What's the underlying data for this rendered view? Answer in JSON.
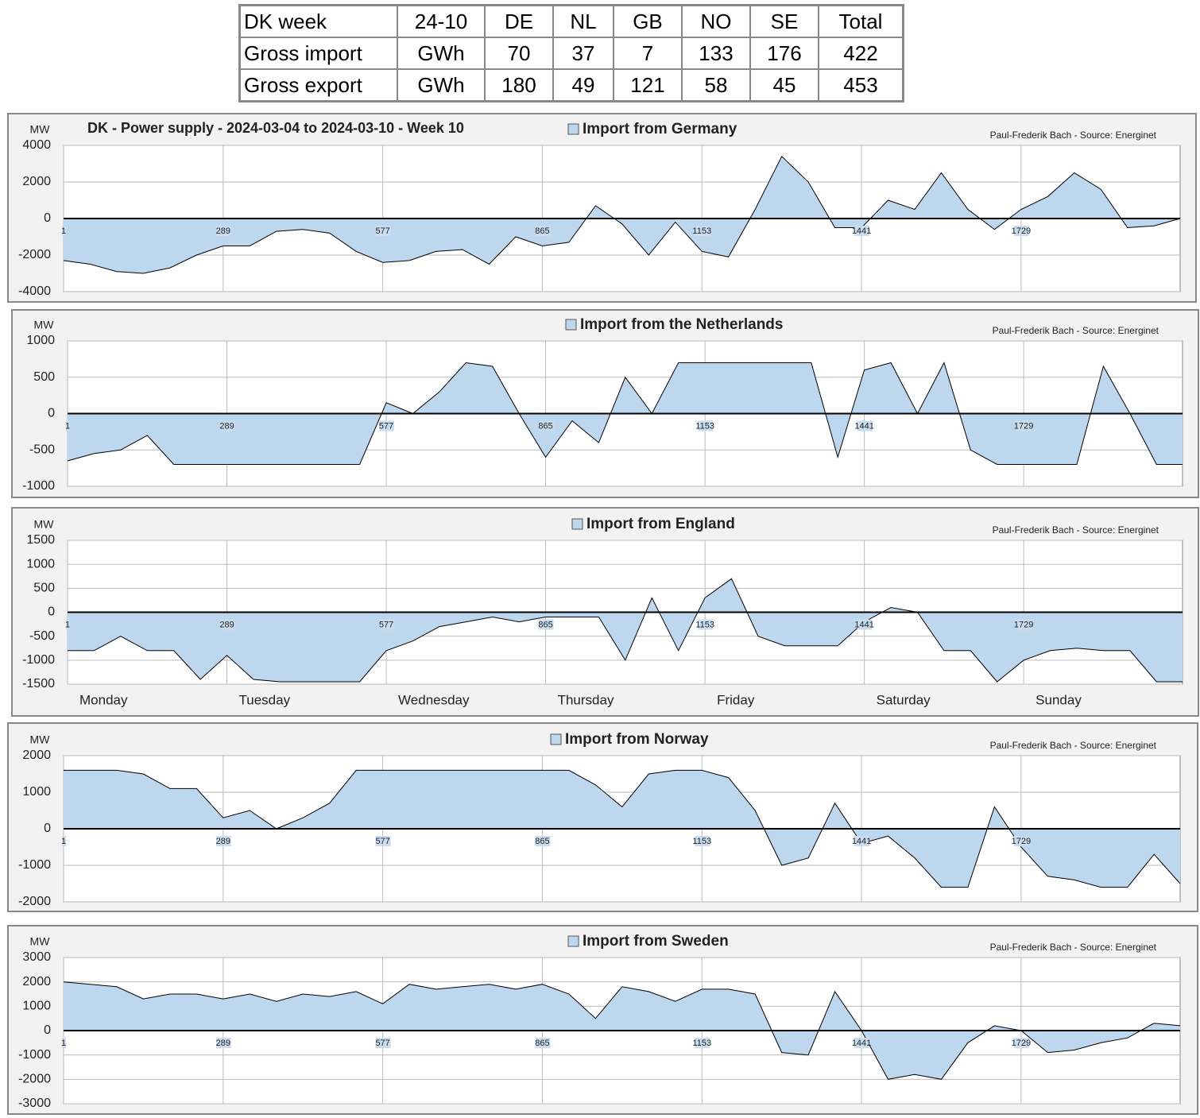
{
  "table": {
    "header": [
      "DK week",
      "24-10",
      "DE",
      "NL",
      "GB",
      "NO",
      "SE",
      "Total"
    ],
    "rows": [
      [
        "Gross import",
        "GWh",
        70,
        37,
        7,
        133,
        176,
        422
      ],
      [
        "Gross export",
        "GWh",
        180,
        49,
        121,
        58,
        45,
        453
      ]
    ]
  },
  "chart_data": [
    {
      "type": "area",
      "title": "DK - Power supply  - 2024-03-04 to 2024-03-10 - Week 10",
      "ylabel": "MW",
      "source": "Paul-Frederik Bach - Source: Energinet",
      "xlim": [
        1,
        2016
      ],
      "xticks": [
        1,
        289,
        577,
        865,
        1153,
        1441,
        1729
      ],
      "ylim": [
        -4000,
        4000
      ],
      "yticks": [
        -4000,
        -2000,
        0,
        2000,
        4000
      ],
      "grid": true,
      "x": [
        1,
        49,
        97,
        145,
        193,
        241,
        289,
        337,
        385,
        433,
        481,
        529,
        577,
        625,
        673,
        721,
        769,
        817,
        865,
        913,
        961,
        1009,
        1057,
        1105,
        1153,
        1201,
        1249,
        1297,
        1345,
        1393,
        1441,
        1489,
        1537,
        1585,
        1633,
        1681,
        1729,
        1777,
        1825,
        1873,
        1921,
        1969,
        2016
      ],
      "series": [
        {
          "name": "Import from Germany",
          "color": "#bdd7ee",
          "values": [
            -2300,
            -2500,
            -2900,
            -3000,
            -2700,
            -2000,
            -1500,
            -1500,
            -700,
            -600,
            -800,
            -1800,
            -2400,
            -2300,
            -1800,
            -1700,
            -2500,
            -1000,
            -1500,
            -1300,
            700,
            -300,
            -2000,
            -200,
            -1800,
            -2100,
            500,
            3400,
            2000,
            -500,
            -500,
            1000,
            500,
            2500,
            500,
            -600,
            500,
            1200,
            2500,
            1600,
            -500,
            -400,
            0
          ]
        }
      ]
    },
    {
      "type": "area",
      "ylabel": "MW",
      "source": "Paul-Frederik Bach - Source: Energinet",
      "xlim": [
        1,
        2016
      ],
      "xticks": [
        1,
        289,
        577,
        865,
        1153,
        1441,
        1729
      ],
      "ylim": [
        -1000,
        1000
      ],
      "yticks": [
        -1000,
        -500,
        0,
        500,
        1000
      ],
      "grid": true,
      "x": [
        1,
        49,
        97,
        145,
        193,
        241,
        289,
        337,
        385,
        433,
        481,
        529,
        577,
        625,
        673,
        721,
        769,
        817,
        865,
        913,
        961,
        1009,
        1057,
        1105,
        1153,
        1201,
        1249,
        1297,
        1345,
        1393,
        1441,
        1489,
        1537,
        1585,
        1633,
        1681,
        1729,
        1777,
        1825,
        1873,
        1921,
        1969,
        2016
      ],
      "series": [
        {
          "name": "Import from the Netherlands",
          "color": "#bdd7ee",
          "values": [
            -650,
            -550,
            -500,
            -300,
            -700,
            -700,
            -700,
            -700,
            -700,
            -700,
            -700,
            -700,
            150,
            0,
            300,
            700,
            650,
            0,
            -600,
            -100,
            -400,
            500,
            0,
            700,
            700,
            700,
            700,
            700,
            700,
            -600,
            600,
            700,
            0,
            700,
            -500,
            -700,
            -700,
            -700,
            -700,
            650,
            0,
            -700,
            -700
          ]
        }
      ]
    },
    {
      "type": "area",
      "ylabel": "MW",
      "source": "Paul-Frederik Bach - Source: Energinet",
      "xlim": [
        1,
        2016
      ],
      "xticks": [
        1,
        289,
        577,
        865,
        1153,
        1441,
        1729
      ],
      "ylim": [
        -1500,
        1500
      ],
      "yticks": [
        -1500,
        -1000,
        -500,
        0,
        500,
        1000,
        1500
      ],
      "grid": true,
      "day_labels": [
        "Monday",
        "Tuesday",
        "Wednesday",
        "Thursday",
        "Friday",
        "Saturday",
        "Sunday"
      ],
      "x": [
        1,
        49,
        97,
        145,
        193,
        241,
        289,
        337,
        385,
        433,
        481,
        529,
        577,
        625,
        673,
        721,
        769,
        817,
        865,
        913,
        961,
        1009,
        1057,
        1105,
        1153,
        1201,
        1249,
        1297,
        1345,
        1393,
        1441,
        1489,
        1537,
        1585,
        1633,
        1681,
        1729,
        1777,
        1825,
        1873,
        1921,
        1969,
        2016
      ],
      "series": [
        {
          "name": "Import from England",
          "color": "#bdd7ee",
          "values": [
            -800,
            -800,
            -500,
            -800,
            -800,
            -1400,
            -900,
            -1400,
            -1450,
            -1450,
            -1450,
            -1450,
            -800,
            -600,
            -300,
            -200,
            -100,
            -200,
            -100,
            -100,
            -100,
            -1000,
            300,
            -800,
            300,
            700,
            -500,
            -700,
            -700,
            -700,
            -200,
            100,
            0,
            -800,
            -800,
            -1450,
            -1000,
            -800,
            -750,
            -800,
            -800,
            -1450,
            -1450
          ]
        }
      ]
    },
    {
      "type": "area",
      "ylabel": "MW",
      "source": "Paul-Frederik Bach - Source: Energinet",
      "xlim": [
        1,
        2016
      ],
      "xticks": [
        1,
        289,
        577,
        865,
        1153,
        1441,
        1729
      ],
      "ylim": [
        -2000,
        2000
      ],
      "yticks": [
        -2000,
        -1000,
        0,
        1000,
        2000
      ],
      "grid": true,
      "x": [
        1,
        49,
        97,
        145,
        193,
        241,
        289,
        337,
        385,
        433,
        481,
        529,
        577,
        625,
        673,
        721,
        769,
        817,
        865,
        913,
        961,
        1009,
        1057,
        1105,
        1153,
        1201,
        1249,
        1297,
        1345,
        1393,
        1441,
        1489,
        1537,
        1585,
        1633,
        1681,
        1729,
        1777,
        1825,
        1873,
        1921,
        1969,
        2016
      ],
      "series": [
        {
          "name": "Import from Norway",
          "color": "#bdd7ee",
          "values": [
            1600,
            1600,
            1600,
            1500,
            1100,
            1100,
            300,
            500,
            0,
            300,
            700,
            1600,
            1600,
            1600,
            1600,
            1600,
            1600,
            1600,
            1600,
            1600,
            1200,
            600,
            1500,
            1600,
            1600,
            1400,
            500,
            -1000,
            -800,
            700,
            -400,
            -200,
            -800,
            -1600,
            -1600,
            600,
            -500,
            -1300,
            -1400,
            -1600,
            -1600,
            -700,
            -1500
          ]
        }
      ]
    },
    {
      "type": "area",
      "ylabel": "MW",
      "source": "Paul-Frederik Bach - Source: Energinet",
      "xlim": [
        1,
        2016
      ],
      "xticks": [
        1,
        289,
        577,
        865,
        1153,
        1441,
        1729
      ],
      "ylim": [
        -3000,
        3000
      ],
      "yticks": [
        -3000,
        -2000,
        -1000,
        0,
        1000,
        2000,
        3000
      ],
      "grid": true,
      "x": [
        1,
        49,
        97,
        145,
        193,
        241,
        289,
        337,
        385,
        433,
        481,
        529,
        577,
        625,
        673,
        721,
        769,
        817,
        865,
        913,
        961,
        1009,
        1057,
        1105,
        1153,
        1201,
        1249,
        1297,
        1345,
        1393,
        1441,
        1489,
        1537,
        1585,
        1633,
        1681,
        1729,
        1777,
        1825,
        1873,
        1921,
        1969,
        2016
      ],
      "series": [
        {
          "name": "Import from Sweden",
          "color": "#bdd7ee",
          "values": [
            2000,
            1900,
            1800,
            1300,
            1500,
            1500,
            1300,
            1500,
            1200,
            1500,
            1400,
            1600,
            1100,
            1900,
            1700,
            1800,
            1900,
            1700,
            1900,
            1500,
            500,
            1800,
            1600,
            1200,
            1700,
            1700,
            1500,
            -900,
            -1000,
            1600,
            0,
            -2000,
            -1800,
            -2000,
            -500,
            200,
            0,
            -900,
            -800,
            -500,
            -300,
            300,
            200
          ]
        }
      ]
    }
  ]
}
